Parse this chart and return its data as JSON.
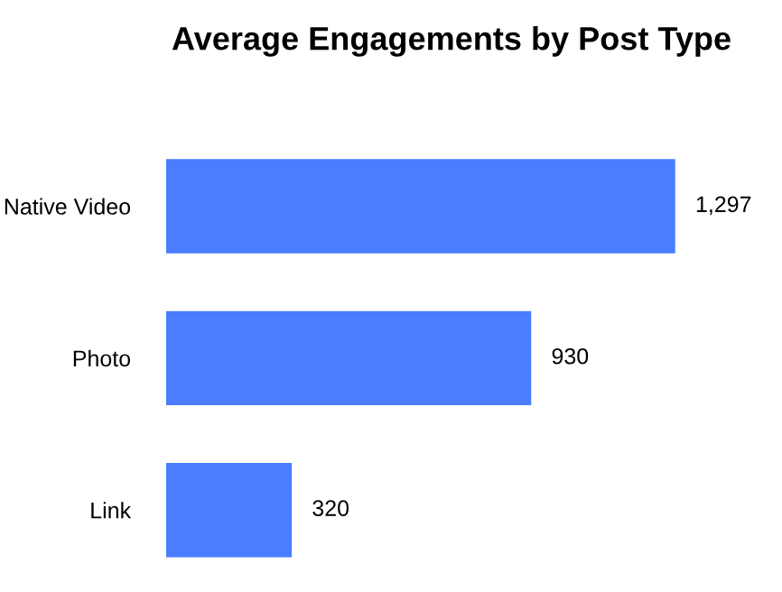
{
  "chart_data": {
    "type": "bar",
    "orientation": "horizontal",
    "title": "Average Engagements by Post Type",
    "categories": [
      "Native Video",
      "Photo",
      "Link"
    ],
    "values": [
      1297,
      930,
      320
    ],
    "value_labels": [
      "1,297",
      "930",
      "320"
    ],
    "color": "#4a7dff",
    "tick_labels": "y",
    "grid": false,
    "legend": false
  }
}
